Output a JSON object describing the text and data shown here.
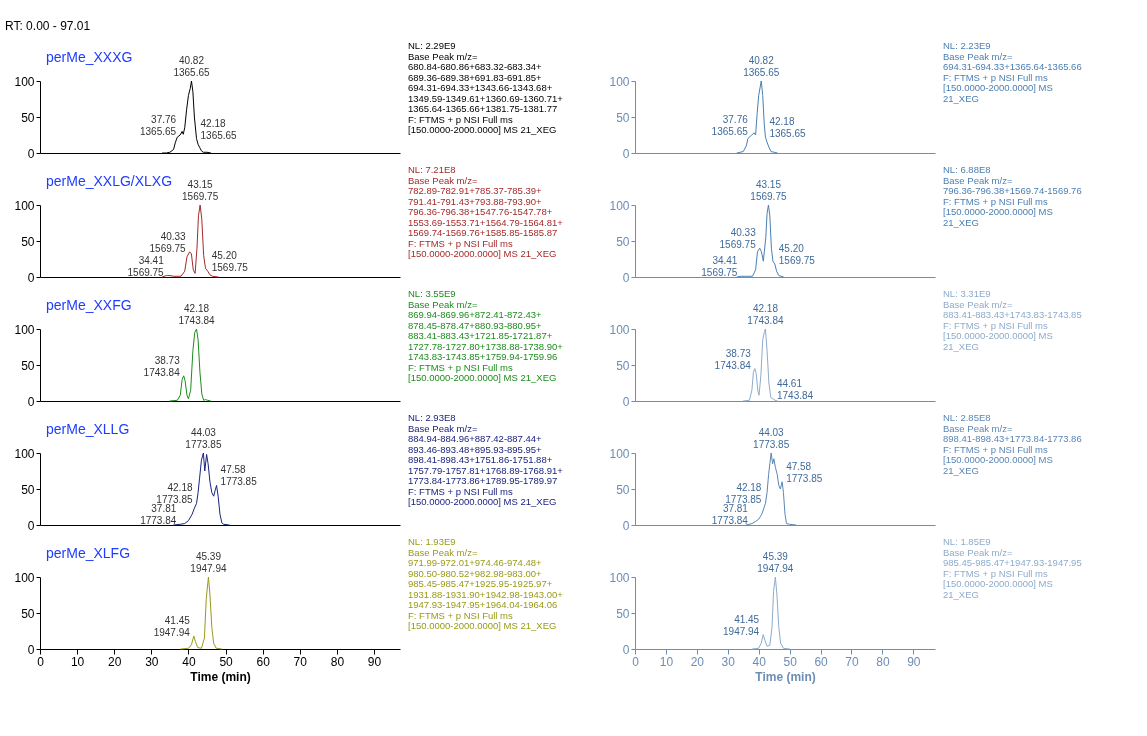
{
  "chart_data": [
    {
      "type": "line",
      "title": "perMe_XXXG",
      "xlim": [
        0,
        97.01
      ],
      "ylim": [
        0,
        100
      ],
      "yticks": [
        0,
        50,
        100
      ],
      "tick_labels": "y",
      "annotations": [
        "NL: 2.29E9\nBase Peak m/z=\n680.84-680.86+683.32-683.34+\n689.36-689.38+691.83-691.85+\n694.31-694.33+1343.66-1343.68+\n1349.59-1349.61+1360.69-1360.71+\n1365.64-1365.66+1381.75-1381.77\nF: FTMS + p NSI Full ms\n[150.0000-2000.0000]  MS 21_XEG",
        "RT: 0.00 - 97.01",
        {
          "text": "37.76\n1365.65",
          "x": 37.76,
          "y": 25
        },
        {
          "text": "40.82\n1365.65",
          "x": 40.82,
          "y": 100
        },
        {
          "text": "42.18\n1365.65",
          "x": 42.18,
          "y": 20
        }
      ],
      "series": [
        {
          "color": "#000000",
          "x": [
            33,
            34,
            35,
            36,
            36.5,
            37,
            37.76,
            38.3,
            38.6,
            39,
            39.5,
            40,
            40.5,
            40.82,
            41.2,
            41.6,
            42.18,
            42.6,
            43,
            43.5,
            44,
            45,
            46
          ],
          "values": [
            0,
            0,
            1,
            5,
            15,
            22,
            25,
            30,
            26,
            35,
            60,
            80,
            90,
            100,
            85,
            50,
            20,
            12,
            8,
            3,
            1,
            1,
            0
          ]
        }
      ]
    },
    {
      "type": "line",
      "xlim": [
        0,
        97.01
      ],
      "ylim": [
        0,
        100
      ],
      "yticks": [
        0,
        50,
        100
      ],
      "tick_labels": "y",
      "annotations": [
        "NL: 2.23E9\nBase Peak m/z=\n694.31-694.33+1365.64-1365.66\nF: FTMS + p NSI Full ms\n[150.0000-2000.0000] MS\n21_XEG",
        {
          "text": "37.76\n1365.65",
          "x": 37.76,
          "y": 25
        },
        {
          "text": "40.82\n1365.65",
          "x": 40.82,
          "y": 100
        },
        {
          "text": "42.18\n1365.65",
          "x": 42.18,
          "y": 22
        }
      ],
      "series": [
        {
          "color": "#4a7fb3",
          "x": [
            33,
            34,
            35,
            36,
            36.5,
            37.76,
            38.5,
            39,
            39.5,
            40,
            40.82,
            41.3,
            41.8,
            42.18,
            42.7,
            43.3,
            44,
            45,
            46
          ],
          "values": [
            0,
            1,
            2,
            10,
            20,
            25,
            28,
            25,
            55,
            80,
            100,
            80,
            40,
            22,
            15,
            8,
            2,
            1,
            0
          ]
        }
      ]
    },
    {
      "type": "line",
      "title": "perMe_XXLG/XLXG",
      "xlim": [
        0,
        97.01
      ],
      "ylim": [
        0,
        100
      ],
      "yticks": [
        0,
        50,
        100
      ],
      "tick_labels": "y",
      "annotations": [
        "NL: 7.21E8\nBase Peak m/z=\n782.89-782.91+785.37-785.39+\n791.41-791.43+793.88-793.90+\n796.36-796.38+1547.76-1547.78+\n1553.69-1553.71+1564.79-1564.81+\n1569.74-1569.76+1585.85-1585.87\nF: FTMS + p NSI Full ms\n[150.0000-2000.0000]  MS 21_XEG",
        {
          "text": "34.41\n1569.75",
          "x": 34.41,
          "y": 2
        },
        {
          "text": "40.33\n1569.75",
          "x": 40.33,
          "y": 35
        },
        {
          "text": "43.15\n1569.75",
          "x": 43.15,
          "y": 100
        },
        {
          "text": "45.20\n1569.75",
          "x": 45.2,
          "y": 8
        }
      ],
      "series": [
        {
          "color": "#a52a2a",
          "x": [
            33,
            34,
            34.41,
            35,
            36,
            38,
            39,
            39.6,
            40.33,
            40.8,
            41.3,
            41.8,
            42.3,
            42.7,
            43.15,
            43.6,
            44.1,
            44.6,
            45.2,
            45.8,
            46.5,
            48
          ],
          "values": [
            0,
            2,
            2,
            2,
            1,
            1,
            8,
            28,
            35,
            32,
            10,
            5,
            40,
            85,
            100,
            80,
            30,
            12,
            8,
            3,
            1,
            0
          ]
        }
      ]
    },
    {
      "type": "line",
      "xlim": [
        0,
        97.01
      ],
      "ylim": [
        0,
        100
      ],
      "yticks": [
        0,
        50,
        100
      ],
      "tick_labels": "y",
      "annotations": [
        "NL: 6.88E8\nBase Peak m/z=\n796.36-796.38+1569.74-1569.76\nF: FTMS + p NSI Full ms\n[150.0000-2000.0000] MS\n21_XEG",
        {
          "text": "34.41\n1569.75",
          "x": 34.41,
          "y": 1
        },
        {
          "text": "40.33\n1569.75",
          "x": 40.33,
          "y": 40
        },
        {
          "text": "43.15\n1569.75",
          "x": 43.15,
          "y": 100
        },
        {
          "text": "45.20\n1569.75",
          "x": 45.2,
          "y": 18
        }
      ],
      "series": [
        {
          "color": "#4a7fb3",
          "x": [
            33,
            34.41,
            36,
            38,
            39,
            39.6,
            40.33,
            40.9,
            41.5,
            42.3,
            42.7,
            43.15,
            43.6,
            44.1,
            44.6,
            45.2,
            45.8,
            46.5,
            48
          ],
          "values": [
            0,
            1,
            1,
            1,
            10,
            35,
            40,
            35,
            22,
            55,
            88,
            100,
            85,
            40,
            22,
            18,
            8,
            2,
            0
          ]
        }
      ]
    },
    {
      "type": "line",
      "title": "perMe_XXFG",
      "xlim": [
        0,
        97.01
      ],
      "ylim": [
        0,
        100
      ],
      "yticks": [
        0,
        50,
        100
      ],
      "tick_labels": "y",
      "annotations": [
        "NL: 3.55E9\nBase Peak m/z=\n869.94-869.96+872.41-872.43+\n878.45-878.47+880.93-880.95+\n883.41-883.43+1721.85-1721.87+\n1727.78-1727.80+1738.88-1738.90+\n1743.83-1743.85+1759.94-1759.96\nF: FTMS + p NSI Full ms\n[150.0000-2000.0000]  MS 21_XEG",
        {
          "text": "38.73\n1743.84",
          "x": 38.73,
          "y": 35
        },
        {
          "text": "42.18\n1743.84",
          "x": 42.18,
          "y": 100
        }
      ],
      "series": [
        {
          "color": "#1e8c1e",
          "x": [
            35,
            37,
            37.8,
            38.3,
            38.73,
            39.1,
            39.6,
            40,
            40.6,
            41.2,
            41.7,
            42.18,
            42.6,
            43.1,
            43.6,
            44.1,
            44.61,
            45.1,
            46
          ],
          "values": [
            0,
            1,
            8,
            30,
            35,
            28,
            8,
            3,
            15,
            70,
            95,
            100,
            85,
            40,
            10,
            1,
            2,
            1,
            0
          ]
        }
      ]
    },
    {
      "type": "line",
      "xlim": [
        0,
        97.01
      ],
      "ylim": [
        0,
        100
      ],
      "yticks": [
        0,
        50,
        100
      ],
      "tick_labels": "y",
      "annotations": [
        "NL: 3.31E9\nBase Peak m/z=\n883.41-883.43+1743.83-1743.85\nF: FTMS + p NSI Full ms\n[150.0000-2000.0000] MS\n21_XEG",
        {
          "text": "38.73\n1743.84",
          "x": 38.73,
          "y": 45
        },
        {
          "text": "42.18\n1743.84",
          "x": 42.18,
          "y": 100
        },
        {
          "text": "44.61\n1743.84",
          "x": 44.61,
          "y": 3
        }
      ],
      "series": [
        {
          "color": "#8fabcc",
          "x": [
            35,
            37,
            37.8,
            38.3,
            38.73,
            39.2,
            39.7,
            40.1,
            40.7,
            41.3,
            41.8,
            42.18,
            42.7,
            43.3,
            43.9,
            44.61,
            45.3,
            46
          ],
          "values": [
            0,
            1,
            15,
            40,
            45,
            38,
            15,
            8,
            35,
            85,
            95,
            100,
            70,
            25,
            5,
            3,
            1,
            0
          ]
        }
      ]
    },
    {
      "type": "line",
      "title": "perMe_XLLG",
      "xlim": [
        0,
        97.01
      ],
      "ylim": [
        0,
        100
      ],
      "yticks": [
        0,
        50,
        100
      ],
      "tick_labels": "y",
      "annotations": [
        "NL: 2.93E8\nBase Peak m/z=\n884.94-884.96+887.42-887.44+\n893.46-893.48+895.93-895.95+\n898.41-898.43+1751.86-1751.88+\n1757.79-1757.81+1768.89-1768.91+\n1773.84-1773.86+1789.95-1789.97\nF: FTMS + p NSI Full ms\n[150.0000-2000.0000]  MS 21_XEG",
        {
          "text": "37.81\n1773.84",
          "x": 37.81,
          "y": 1
        },
        {
          "text": "42.18\n1773.85",
          "x": 42.18,
          "y": 30
        },
        {
          "text": "44.03\n1773.85",
          "x": 44.03,
          "y": 100
        },
        {
          "text": "47.58\n1773.85",
          "x": 47.58,
          "y": 55
        }
      ],
      "series": [
        {
          "color": "#1a237e",
          "x": [
            36,
            37.81,
            39,
            40,
            41,
            41.5,
            42.18,
            42.6,
            43,
            43.5,
            44.03,
            44.4,
            44.9,
            45.3,
            45.8,
            46.3,
            46.8,
            47.2,
            47.58,
            48,
            48.5,
            49,
            49.5,
            51
          ],
          "values": [
            0,
            1,
            2,
            6,
            15,
            22,
            30,
            45,
            65,
            90,
            100,
            75,
            98,
            85,
            60,
            45,
            40,
            48,
            55,
            40,
            15,
            3,
            1,
            0
          ]
        }
      ]
    },
    {
      "type": "line",
      "xlim": [
        0,
        97.01
      ],
      "ylim": [
        0,
        100
      ],
      "yticks": [
        0,
        50,
        100
      ],
      "tick_labels": "y",
      "annotations": [
        "NL: 2.85E8\nBase Peak m/z=\n898.41-898.43+1773.84-1773.86\nF: FTMS + p NSI Full ms\n[150.0000-2000.0000] MS\n21_XEG",
        {
          "text": "37.81\n1773.84",
          "x": 37.81,
          "y": 2
        },
        {
          "text": "42.18\n1773.85",
          "x": 42.18,
          "y": 30
        },
        {
          "text": "44.03\n1773.85",
          "x": 44.03,
          "y": 100
        },
        {
          "text": "47.58\n1773.85",
          "x": 47.58,
          "y": 60
        }
      ],
      "series": [
        {
          "color": "#5a86b5",
          "x": [
            36,
            37.81,
            39,
            40,
            41,
            41.8,
            42.18,
            42.7,
            43.2,
            43.6,
            44.03,
            44.5,
            44.9,
            45.4,
            46,
            46.5,
            47,
            47.58,
            48,
            48.5,
            49,
            50,
            52
          ],
          "values": [
            0,
            2,
            5,
            8,
            15,
            25,
            30,
            45,
            70,
            85,
            100,
            85,
            92,
            80,
            70,
            55,
            50,
            60,
            45,
            15,
            2,
            1,
            0
          ]
        }
      ]
    },
    {
      "type": "line",
      "title": "perMe_XLFG",
      "xlim": [
        0,
        97.01
      ],
      "xticks": [
        0,
        10,
        20,
        30,
        40,
        50,
        60,
        70,
        80,
        90
      ],
      "xlabel": "Time (min)",
      "ylim": [
        0,
        100
      ],
      "yticks": [
        0,
        50,
        100
      ],
      "annotations": [
        "NL: 1.93E9\nBase Peak m/z=\n971.99-972.01+974.46-974.48+\n980.50-980.52+982.98-983.00+\n985.45-985.47+1925.95-1925.97+\n1931.88-1931.90+1942.98-1943.00+\n1947.93-1947.95+1964.04-1964.06\nF: FTMS + p NSI Full ms\n[150.0000-2000.0000]  MS 21_XEG",
        {
          "text": "41.45\n1947.94",
          "x": 41.45,
          "y": 18
        },
        {
          "text": "45.39\n1947.94",
          "x": 45.39,
          "y": 100
        }
      ],
      "series": [
        {
          "color": "#9a9a1a",
          "x": [
            38,
            40,
            40.8,
            41.45,
            41.9,
            42.5,
            43.5,
            44.3,
            44.8,
            45.39,
            45.8,
            46.3,
            46.8,
            47.5,
            49
          ],
          "values": [
            0,
            1,
            6,
            18,
            10,
            2,
            1,
            15,
            70,
            100,
            75,
            30,
            8,
            1,
            0
          ]
        }
      ]
    },
    {
      "type": "line",
      "xlim": [
        0,
        97.01
      ],
      "xticks": [
        0,
        10,
        20,
        30,
        40,
        50,
        60,
        70,
        80,
        90
      ],
      "xlabel": "Time (min)",
      "ylim": [
        0,
        100
      ],
      "yticks": [
        0,
        50,
        100
      ],
      "annotations": [
        "NL: 1.85E9\nBase Peak m/z=\n985.45-985.47+1947.93-1947.95\nF: FTMS + p NSI Full ms\n[150.0000-2000.0000] MS\n21_XEG",
        {
          "text": "41.45\n1947.94",
          "x": 41.45,
          "y": 20
        },
        {
          "text": "45.39\n1947.94",
          "x": 45.39,
          "y": 100
        }
      ],
      "series": [
        {
          "color": "#8fabcc",
          "x": [
            38,
            40,
            40.8,
            41.45,
            42,
            42.7,
            43.6,
            44.3,
            44.8,
            45.39,
            45.9,
            46.5,
            47.1,
            48,
            50
          ],
          "values": [
            0,
            1,
            8,
            20,
            12,
            4,
            5,
            30,
            80,
            100,
            75,
            30,
            8,
            1,
            0
          ]
        }
      ]
    }
  ]
}
